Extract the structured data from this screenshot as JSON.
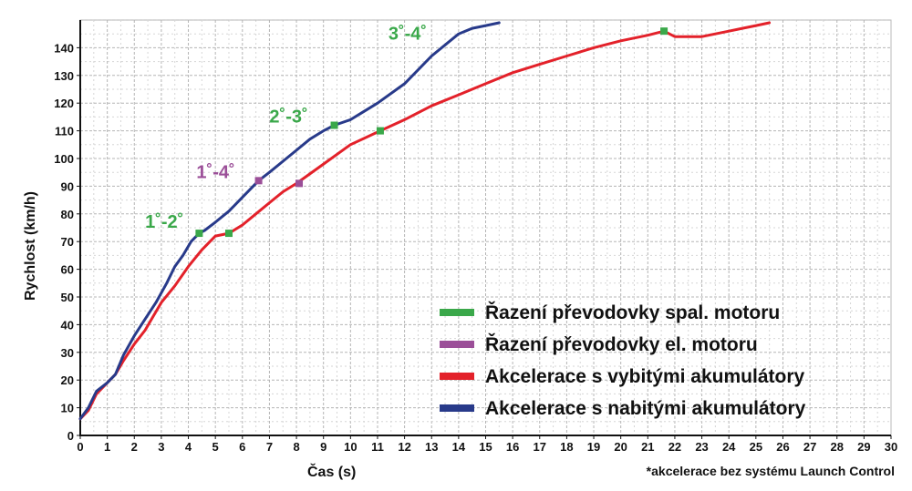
{
  "chart_data": {
    "type": "line",
    "xlabel": "Čas (s)",
    "ylabel": "Rychlost (km/h)",
    "xlim": [
      0,
      30
    ],
    "ylim": [
      0,
      150
    ],
    "xticks": [
      0,
      1,
      2,
      3,
      4,
      5,
      6,
      7,
      8,
      9,
      10,
      11,
      12,
      13,
      14,
      15,
      16,
      17,
      18,
      19,
      20,
      21,
      22,
      23,
      24,
      25,
      26,
      27,
      28,
      29,
      30
    ],
    "yticks": [
      0,
      10,
      20,
      30,
      40,
      50,
      60,
      70,
      80,
      90,
      100,
      110,
      120,
      130,
      140
    ],
    "grid": true,
    "legend_position": "bottom-right",
    "colors": {
      "green": "#3aa84a",
      "purple": "#9b4f98",
      "red": "#e3212a",
      "blue": "#283a8a"
    },
    "legend": [
      {
        "label": "Řazení převodovky spal. motoru",
        "color": "#3aa84a"
      },
      {
        "label": "Řazení převodovky el. motoru",
        "color": "#9b4f98"
      },
      {
        "label": "Akcelerace s vybitými akumulátory",
        "color": "#e3212a"
      },
      {
        "label": "Akcelerace s nabitými akumulátory",
        "color": "#283a8a"
      }
    ],
    "series": [
      {
        "color": "#e3212a",
        "x": [
          0,
          0.3,
          0.6,
          1.0,
          1.3,
          1.6,
          2.0,
          2.4,
          2.7,
          3.0,
          3.5,
          4.0,
          4.5,
          5.0,
          5.5,
          6.0,
          6.5,
          7.0,
          7.5,
          8.0,
          9.0,
          10.0,
          11.1,
          12.0,
          13.0,
          14.0,
          15.0,
          16.0,
          17.0,
          18.0,
          19.0,
          20.0,
          21.0,
          21.6,
          22.0,
          22.5,
          23.0,
          23.5,
          24.0,
          24.5,
          25.0,
          25.5
        ],
        "y": [
          6,
          9,
          15,
          19,
          22,
          27,
          33,
          38,
          43,
          48,
          54,
          61,
          67,
          72,
          73,
          76,
          80,
          84,
          88,
          91,
          98,
          105,
          110,
          114,
          119,
          123,
          127,
          131,
          134,
          137,
          140,
          142.5,
          144.5,
          146,
          144,
          144,
          144,
          145,
          146,
          147,
          148,
          149
        ]
      },
      {
        "color": "#283a8a",
        "x": [
          0,
          0.3,
          0.6,
          1.0,
          1.3,
          1.6,
          2.0,
          2.4,
          2.8,
          3.2,
          3.5,
          3.8,
          4.1,
          4.4,
          4.6,
          5.0,
          5.5,
          6.0,
          6.6,
          7.0,
          7.5,
          8.0,
          8.5,
          9.0,
          9.4,
          10.0,
          10.5,
          11.0,
          12.0,
          13.0,
          14.0,
          14.5,
          15.0,
          15.5
        ],
        "y": [
          6,
          10,
          16,
          19,
          22,
          29,
          36,
          42,
          48,
          55,
          61,
          65,
          70,
          73,
          74,
          77,
          81,
          86,
          92,
          95,
          99,
          103,
          107,
          110,
          112,
          114,
          117,
          120,
          127,
          137,
          145,
          147,
          148,
          149
        ]
      }
    ],
    "shift_markers": [
      {
        "x": 4.4,
        "y": 73,
        "color": "#3aa84a"
      },
      {
        "x": 5.5,
        "y": 73,
        "color": "#3aa84a"
      },
      {
        "x": 6.6,
        "y": 92,
        "color": "#9b4f98"
      },
      {
        "x": 8.1,
        "y": 91,
        "color": "#9b4f98"
      },
      {
        "x": 9.4,
        "y": 112,
        "color": "#3aa84a"
      },
      {
        "x": 11.1,
        "y": 110,
        "color": "#3aa84a"
      },
      {
        "x": 21.6,
        "y": 146,
        "color": "#3aa84a"
      }
    ],
    "annotations": [
      {
        "text": "1˚-2˚",
        "x": 2.4,
        "y": 75,
        "color": "#3aa84a"
      },
      {
        "text": "1˚-4˚",
        "x": 4.3,
        "y": 93,
        "color": "#9b4f98"
      },
      {
        "text": "2˚-3˚",
        "x": 7.0,
        "y": 113,
        "color": "#3aa84a"
      },
      {
        "text": "3˚-4˚",
        "x": 11.4,
        "y": 143,
        "color": "#3aa84a"
      }
    ],
    "footnote": "*akcelerace bez systému Launch Control"
  }
}
